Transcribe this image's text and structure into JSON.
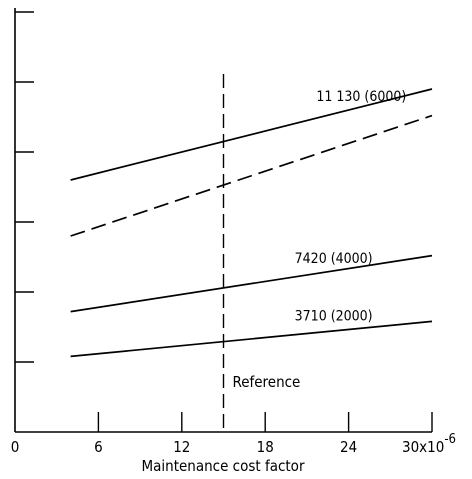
{
  "chart_data": {
    "type": "line",
    "xlabel": "Maintenance cost factor",
    "x_tick_labels": [
      "0",
      "6",
      "12",
      "18",
      "24",
      "30x10"
    ],
    "x_tick_exponent": "-6",
    "x_ticks": [
      0,
      6,
      12,
      18,
      24,
      30
    ],
    "xlim": [
      0,
      30
    ],
    "ylim": [
      0,
      6
    ],
    "y_ticks": [
      1,
      2,
      3,
      4,
      5,
      6
    ],
    "grid": false,
    "reference": {
      "x": 15,
      "label": "Reference",
      "style": "dashed"
    },
    "series": [
      {
        "name": "11 130 (6000)",
        "style": "solid",
        "x": [
          4,
          30
        ],
        "y": [
          3.6,
          4.9
        ]
      },
      {
        "name": "",
        "style": "dashed",
        "x": [
          4,
          30
        ],
        "y": [
          2.8,
          4.52
        ]
      },
      {
        "name": "7420 (4000)",
        "style": "solid",
        "x": [
          4,
          30
        ],
        "y": [
          1.72,
          2.52
        ]
      },
      {
        "name": "3710 (2000)",
        "style": "solid",
        "x": [
          4,
          30
        ],
        "y": [
          1.08,
          1.58
        ]
      }
    ]
  }
}
